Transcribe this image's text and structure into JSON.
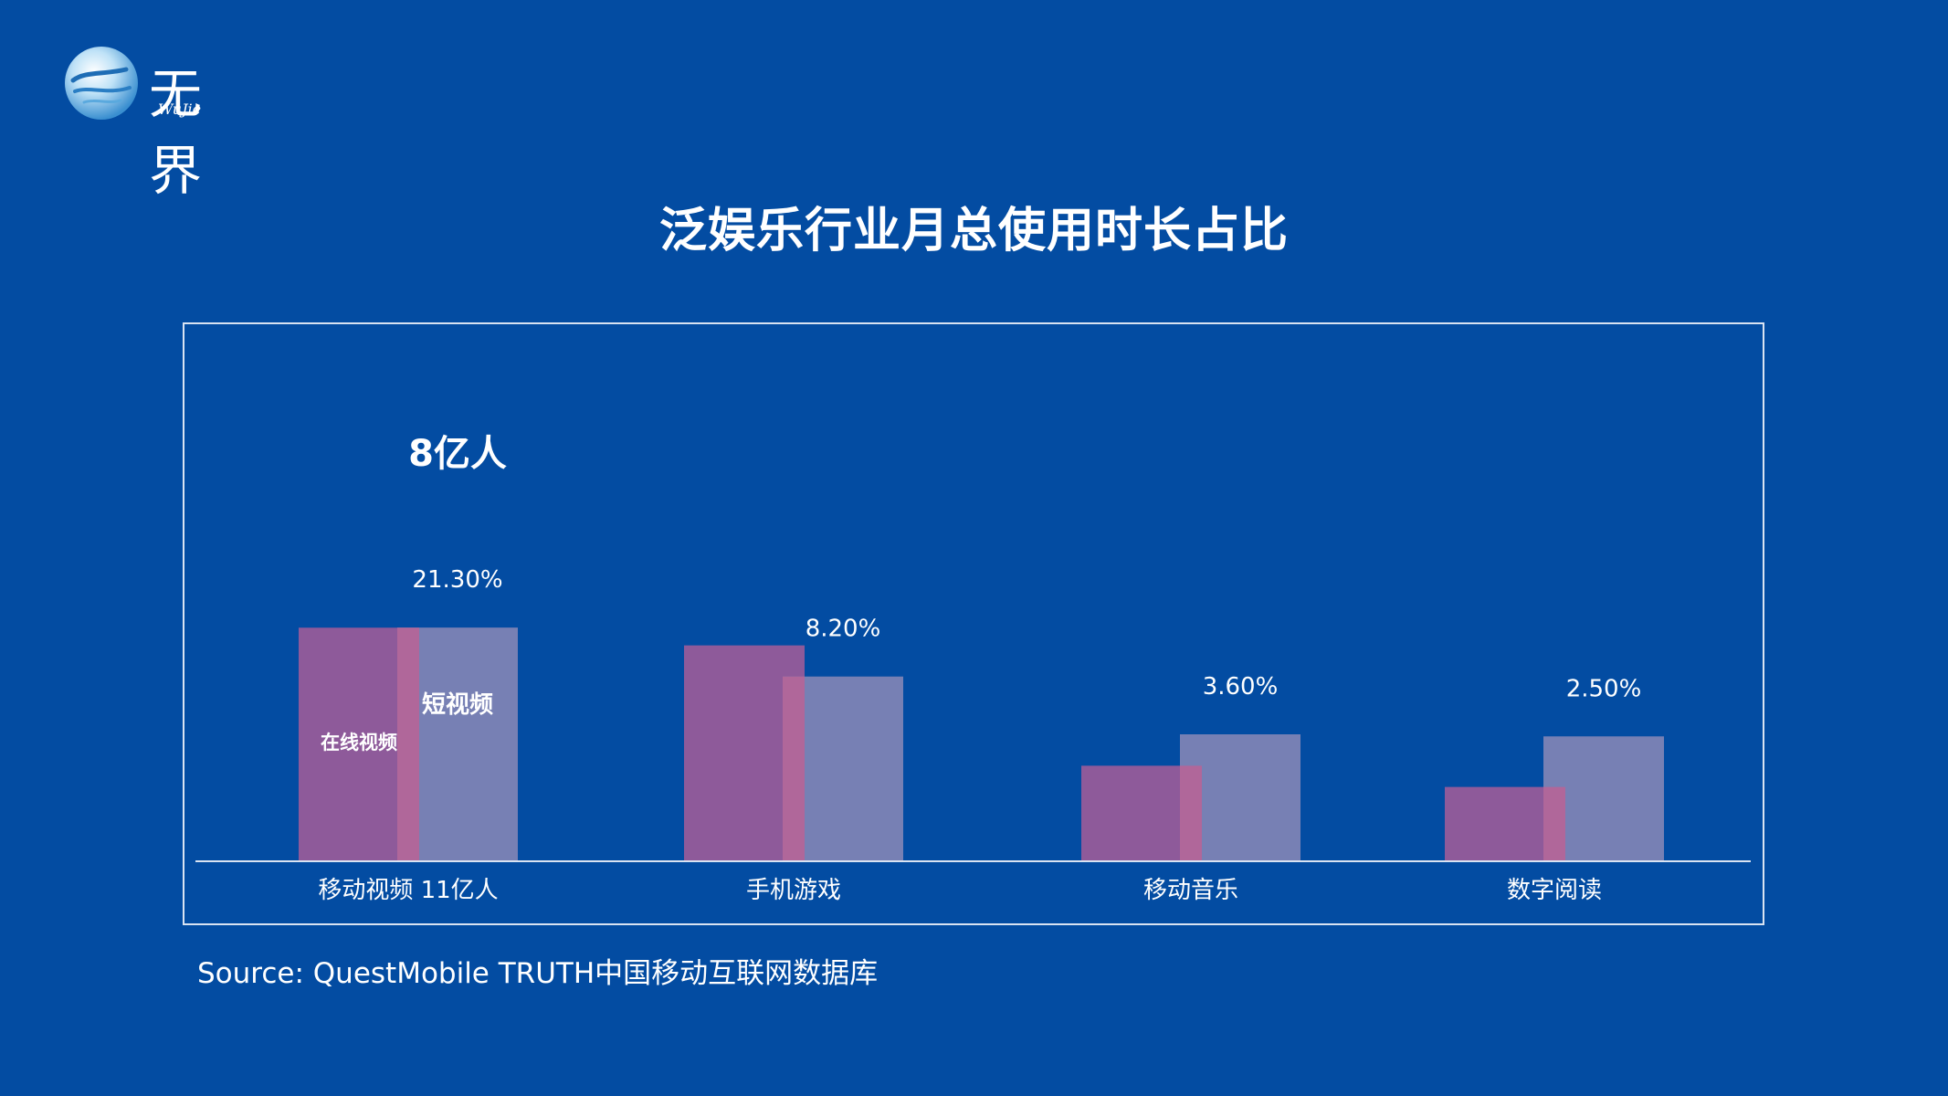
{
  "slide": {
    "logo": {
      "text": "无界",
      "subtext": "WuJie"
    },
    "title": "泛娱乐行业月总使用时长占比",
    "source": "Source: QuestMobile TRUTH中国移动互联网数据库"
  },
  "colors": {
    "background": "#034ca2",
    "series_online": "#8e5a9a",
    "series_short": "#7780b4",
    "overlap": "#b0679a",
    "frame": "#d9e3f2"
  },
  "chart_data": {
    "type": "bar",
    "categories": [
      "移动视频  11亿人",
      "手机游戏",
      "移动音乐",
      "数字阅读"
    ],
    "series": [
      {
        "values": [
          33.0,
          30.5,
          13.5,
          10.5
        ]
      },
      {
        "values": [
          21.3,
          8.2,
          3.6,
          2.5
        ]
      }
    ],
    "data_labels": [
      "21.30%",
      "8.20%",
      "3.60%",
      "2.50%"
    ],
    "annotations": {
      "top_note": "8亿人",
      "online_video_label": "在线视频",
      "short_video_label": "短视频"
    },
    "grid": false,
    "legend": "none"
  }
}
